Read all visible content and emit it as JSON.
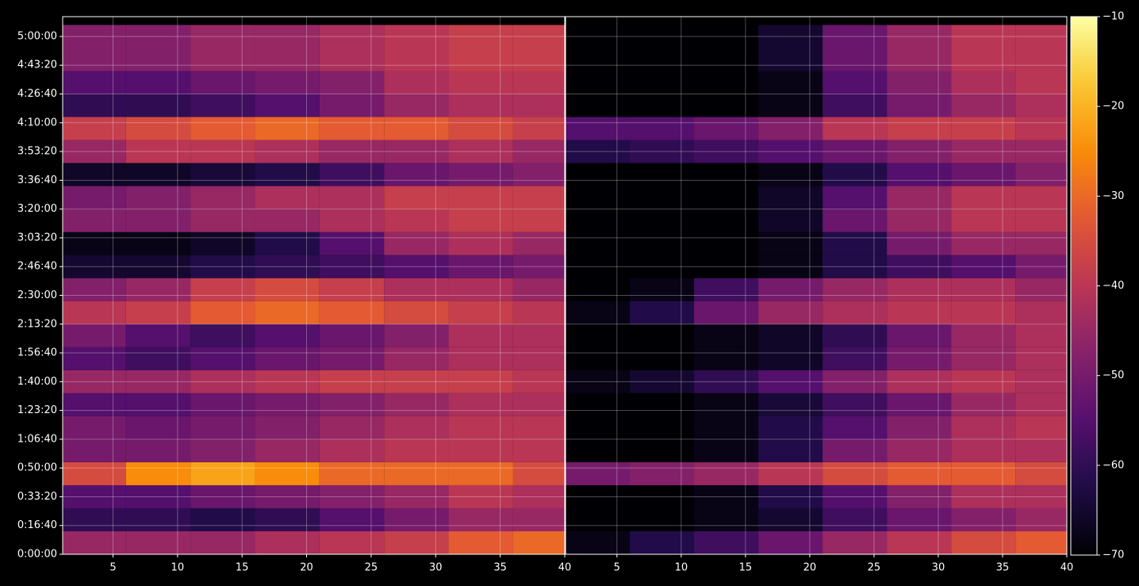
{
  "chart_data": {
    "type": "heatmap",
    "colormap": "inferno",
    "grid": true,
    "y": [
      400,
      1200,
      2000,
      2800,
      3600,
      4400,
      5200,
      6000,
      6800,
      7600,
      8400,
      9200,
      10000,
      10800,
      11600,
      12400,
      13200,
      14000,
      14800,
      15600,
      16400,
      17200,
      18000
    ],
    "ylim": [
      0,
      18688
    ],
    "yticks": [
      {
        "value": 0,
        "label": "0:00:00"
      },
      {
        "value": 1000,
        "label": "0:16:40"
      },
      {
        "value": 2000,
        "label": "0:33:20"
      },
      {
        "value": 3000,
        "label": "0:50:00"
      },
      {
        "value": 4000,
        "label": "1:06:40"
      },
      {
        "value": 5000,
        "label": "1:23:20"
      },
      {
        "value": 6000,
        "label": "1:40:00"
      },
      {
        "value": 7000,
        "label": "1:56:40"
      },
      {
        "value": 8000,
        "label": "2:13:20"
      },
      {
        "value": 9000,
        "label": "2:30:00"
      },
      {
        "value": 10000,
        "label": "2:46:40"
      },
      {
        "value": 11000,
        "label": "3:03:20"
      },
      {
        "value": 12000,
        "label": "3:20:00"
      },
      {
        "value": 13000,
        "label": "3:36:40"
      },
      {
        "value": 14000,
        "label": "3:53:20"
      },
      {
        "value": 15000,
        "label": "4:10:00"
      },
      {
        "value": 16000,
        "label": "4:26:40"
      },
      {
        "value": 17000,
        "label": "4:43:20"
      },
      {
        "value": 18000,
        "label": "5:00:00"
      }
    ],
    "clim": [
      -70,
      -10
    ],
    "cticks": [
      {
        "value": -70,
        "label": "−70"
      },
      {
        "value": -60,
        "label": "−60"
      },
      {
        "value": -50,
        "label": "−50"
      },
      {
        "value": -40,
        "label": "−40"
      },
      {
        "value": -30,
        "label": "−30"
      },
      {
        "value": -20,
        "label": "−20"
      },
      {
        "value": -10,
        "label": "−10"
      }
    ],
    "panels": [
      {
        "xlim": [
          1.1,
          40
        ],
        "xticks": [
          5,
          10,
          15,
          20,
          25,
          30,
          35,
          40
        ],
        "x": [
          3.5,
          8.5,
          13.5,
          18.5,
          23.5,
          28.5,
          33.5,
          38.5
        ],
        "values": [
          [
            -45,
            -45,
            -45,
            -42,
            -40,
            -38,
            -32,
            -30
          ],
          [
            -60,
            -60,
            -62,
            -60,
            -55,
            -50,
            -45,
            -45
          ],
          [
            -55,
            -55,
            -52,
            -50,
            -48,
            -45,
            -40,
            -42
          ],
          [
            -35,
            -25,
            -22,
            -25,
            -30,
            -30,
            -30,
            -35
          ],
          [
            -50,
            -50,
            -48,
            -45,
            -42,
            -40,
            -40,
            -40
          ],
          [
            -50,
            -52,
            -50,
            -48,
            -45,
            -42,
            -40,
            -40
          ],
          [
            -55,
            -55,
            -52,
            -50,
            -48,
            -45,
            -42,
            -42
          ],
          [
            -45,
            -45,
            -42,
            -40,
            -38,
            -38,
            -38,
            -40
          ],
          [
            -55,
            -58,
            -55,
            -52,
            -50,
            -45,
            -42,
            -42
          ],
          [
            -50,
            -55,
            -58,
            -55,
            -52,
            -48,
            -42,
            -42
          ],
          [
            -40,
            -38,
            -32,
            -30,
            -32,
            -35,
            -38,
            -40
          ],
          [
            -48,
            -45,
            -38,
            -35,
            -38,
            -42,
            -42,
            -45
          ],
          [
            -65,
            -65,
            -62,
            -60,
            -58,
            -55,
            -52,
            -50
          ],
          [
            -68,
            -68,
            -66,
            -62,
            -55,
            -45,
            -42,
            -45
          ],
          [
            -48,
            -48,
            -45,
            -45,
            -42,
            -40,
            -38,
            -38
          ],
          [
            -50,
            -48,
            -45,
            -42,
            -42,
            -38,
            -38,
            -38
          ],
          [
            -66,
            -66,
            -64,
            -62,
            -58,
            -52,
            -50,
            -48
          ],
          [
            -45,
            -40,
            -40,
            -42,
            -45,
            -45,
            -42,
            -45
          ],
          [
            -38,
            -35,
            -32,
            -30,
            -32,
            -32,
            -35,
            -38
          ],
          [
            -60,
            -60,
            -58,
            -55,
            -50,
            -45,
            -42,
            -42
          ],
          [
            -55,
            -55,
            -52,
            -50,
            -48,
            -42,
            -40,
            -40
          ],
          [
            -48,
            -48,
            -45,
            -45,
            -42,
            -40,
            -38,
            -38
          ],
          [
            -48,
            -48,
            -45,
            -45,
            -42,
            -40,
            -38,
            -38
          ]
        ]
      },
      {
        "xlim": [
          1,
          40
        ],
        "xticks": [
          5,
          10,
          15,
          20,
          25,
          30,
          35,
          40
        ],
        "x": [
          3.5,
          8.5,
          13.5,
          18.5,
          23.5,
          28.5,
          33.5,
          38.5
        ],
        "values": [
          [
            -68,
            -62,
            -58,
            -52,
            -45,
            -40,
            -35,
            -32
          ],
          [
            -70,
            -70,
            -68,
            -65,
            -58,
            -52,
            -48,
            -45
          ],
          [
            -70,
            -70,
            -68,
            -62,
            -55,
            -48,
            -42,
            -42
          ],
          [
            -50,
            -48,
            -45,
            -40,
            -35,
            -32,
            -32,
            -35
          ],
          [
            -70,
            -70,
            -68,
            -62,
            -50,
            -45,
            -42,
            -42
          ],
          [
            -70,
            -70,
            -68,
            -62,
            -55,
            -48,
            -42,
            -40
          ],
          [
            -70,
            -70,
            -68,
            -64,
            -58,
            -52,
            -45,
            -42
          ],
          [
            -68,
            -65,
            -60,
            -55,
            -48,
            -42,
            -40,
            -42
          ],
          [
            -70,
            -70,
            -68,
            -66,
            -58,
            -50,
            -45,
            -42
          ],
          [
            -70,
            -70,
            -68,
            -66,
            -60,
            -52,
            -45,
            -42
          ],
          [
            -68,
            -62,
            -52,
            -45,
            -42,
            -40,
            -40,
            -42
          ],
          [
            -70,
            -68,
            -58,
            -50,
            -45,
            -42,
            -42,
            -45
          ],
          [
            -70,
            -70,
            -70,
            -68,
            -62,
            -58,
            -55,
            -50
          ],
          [
            -70,
            -70,
            -70,
            -68,
            -62,
            -50,
            -45,
            -45
          ],
          [
            -70,
            -70,
            -70,
            -66,
            -52,
            -45,
            -40,
            -40
          ],
          [
            -70,
            -70,
            -70,
            -66,
            -55,
            -45,
            -40,
            -40
          ],
          [
            -70,
            -70,
            -70,
            -68,
            -62,
            -55,
            -52,
            -48
          ],
          [
            -62,
            -60,
            -58,
            -55,
            -52,
            -48,
            -45,
            -45
          ],
          [
            -55,
            -55,
            -52,
            -48,
            -40,
            -38,
            -38,
            -40
          ],
          [
            -70,
            -70,
            -70,
            -68,
            -58,
            -50,
            -45,
            -42
          ],
          [
            -70,
            -70,
            -70,
            -68,
            -55,
            -48,
            -42,
            -40
          ],
          [
            -70,
            -70,
            -70,
            -65,
            -52,
            -45,
            -40,
            -40
          ],
          [
            -70,
            -70,
            -70,
            -65,
            -52,
            -45,
            -40,
            -40
          ]
        ]
      }
    ]
  }
}
